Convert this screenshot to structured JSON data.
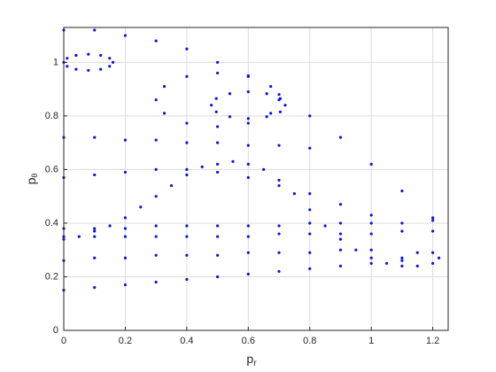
{
  "chart_data": {
    "type": "scatter",
    "xlabel": "p",
    "xlabel_sub": "r",
    "ylabel": "p",
    "ylabel_sub": "θ",
    "xlim": [
      0,
      1.25
    ],
    "ylim": [
      0,
      1.13
    ],
    "xticks": [
      0,
      0.2,
      0.4,
      0.6,
      0.8,
      1,
      1.2
    ],
    "yticks": [
      0,
      0.2,
      0.4,
      0.6,
      0.8,
      1
    ],
    "grid": true,
    "color": "#0a14e6",
    "series": [
      {
        "x": [
          0,
          0.1,
          0.2,
          0.3,
          0.4,
          0.5,
          0.6,
          0.7,
          0.8,
          0.9,
          1.0,
          1.1
        ],
        "values": [
          0.15,
          0.16,
          0.17,
          0.18,
          0.19,
          0.2,
          0.21,
          0.22,
          0.23,
          0.24,
          0.25,
          0.26
        ]
      },
      {
        "x": [
          0,
          0.05,
          0.1,
          0.15,
          0.2,
          0.25,
          0.3,
          0.35,
          0.4,
          0.45,
          0.5,
          0.55,
          0.6,
          0.65,
          0.7,
          0.75,
          0.8,
          0.85,
          0.9,
          0.95,
          1.0,
          1.05,
          1.1,
          1.15,
          1.2,
          1.22,
          1.2,
          1.15,
          1.1
        ],
        "values": [
          0.34,
          0.35,
          0.37,
          0.39,
          0.42,
          0.46,
          0.5,
          0.54,
          0.58,
          0.61,
          0.62,
          0.63,
          0.62,
          0.6,
          0.56,
          0.51,
          0.45,
          0.39,
          0.34,
          0.3,
          0.27,
          0.25,
          0.24,
          0.24,
          0.25,
          0.27,
          0.29,
          0.29,
          0.27
        ]
      },
      {
        "x": [
          0,
          0.1,
          0.2,
          0.3,
          0.4,
          0.5,
          0.6,
          0.7,
          0.8,
          0.9,
          1.0,
          1.1,
          1.2
        ],
        "values": [
          0.38,
          0.38,
          0.38,
          0.39,
          0.39,
          0.39,
          0.39,
          0.39,
          0.4,
          0.4,
          0.4,
          0.4,
          0.41
        ]
      },
      {
        "x": [
          0,
          0.1,
          0.2,
          0.3,
          0.4,
          0.5,
          0.6,
          0.7,
          0.8,
          0.9,
          1.0,
          1.1,
          1.2
        ],
        "values": [
          0.35,
          0.35,
          0.35,
          0.35,
          0.35,
          0.35,
          0.35,
          0.36,
          0.36,
          0.36,
          0.36,
          0.37,
          0.37
        ]
      },
      {
        "x": [
          0,
          0.1,
          0.2,
          0.3,
          0.4,
          0.5,
          0.6,
          0.7,
          0.8,
          0.9,
          1.0
        ],
        "values": [
          0.26,
          0.27,
          0.27,
          0.28,
          0.28,
          0.28,
          0.29,
          0.29,
          0.29,
          0.3,
          0.3
        ]
      },
      {
        "x": [
          0,
          0.1,
          0.2,
          0.3,
          0.4,
          0.5,
          0.6,
          0.7,
          0.8,
          0.9,
          1.0,
          1.1,
          1.2
        ],
        "values": [
          1.12,
          1.12,
          1.1,
          1.08,
          1.05,
          1.0,
          0.95,
          0.88,
          0.8,
          0.72,
          0.62,
          0.52,
          0.42
        ]
      },
      {
        "x": [
          0.16,
          0.149,
          0.12,
          0.08,
          0.04,
          0.011,
          0,
          0.011,
          0.04,
          0.08,
          0.12,
          0.149
        ],
        "values": [
          1,
          1.015,
          1.026,
          1.03,
          1.026,
          1.015,
          1,
          0.985,
          0.974,
          0.97,
          0.974,
          0.985
        ]
      },
      {
        "x": [
          0.72,
          0.704,
          0.66,
          0.6,
          0.54,
          0.496,
          0.48,
          0.496,
          0.54,
          0.6,
          0.66,
          0.704
        ],
        "values": [
          0.84,
          0.865,
          0.883,
          0.89,
          0.883,
          0.865,
          0.84,
          0.815,
          0.797,
          0.79,
          0.797,
          0.815
        ]
      },
      {
        "x": [
          0.7,
          0.673,
          0.6,
          0.5,
          0.4,
          0.327,
          0.3,
          0.327,
          0.4,
          0.5,
          0.6,
          0.673
        ],
        "values": [
          0.86,
          0.91,
          0.947,
          0.96,
          0.947,
          0.91,
          0.86,
          0.81,
          0.773,
          0.76,
          0.773,
          0.81
        ]
      },
      {
        "x": [
          0,
          0.1,
          0.2,
          0.3,
          0.4,
          0.5,
          0.6,
          0.7,
          0.8
        ],
        "values": [
          0.72,
          0.72,
          0.71,
          0.71,
          0.7,
          0.7,
          0.69,
          0.69,
          0.68
        ]
      },
      {
        "x": [
          0,
          0.1,
          0.2,
          0.3,
          0.4,
          0.5,
          0.6,
          0.7,
          0.8,
          0.9,
          1.0
        ],
        "values": [
          0.57,
          0.58,
          0.59,
          0.6,
          0.6,
          0.59,
          0.57,
          0.54,
          0.51,
          0.47,
          0.43
        ]
      }
    ]
  }
}
